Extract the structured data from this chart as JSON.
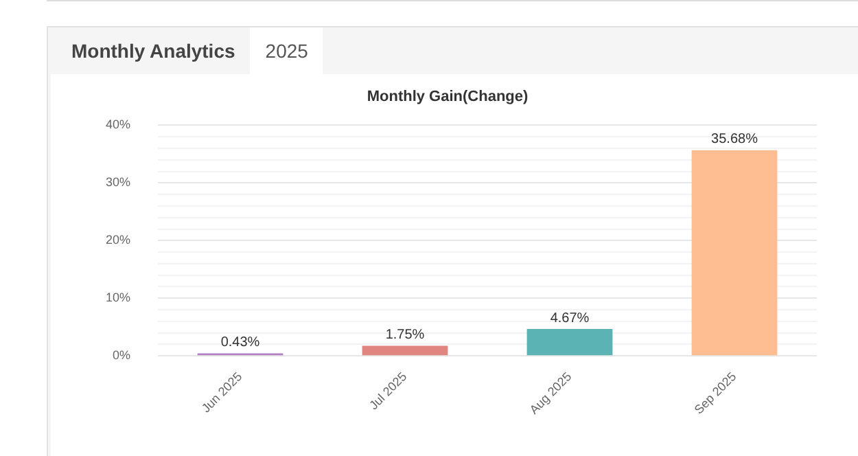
{
  "chart_data": {
    "type": "bar",
    "title": "Monthly Gain(Change)",
    "annotations": [
      "Monthly Analytics",
      "2025"
    ],
    "categories": [
      "Jun 2025",
      "Jul 2025",
      "Aug 2025",
      "Sep 2025"
    ],
    "values": [
      0.43,
      1.75,
      4.67,
      35.68
    ],
    "colors": [
      "#b57fc4",
      "#e08580",
      "#5bb3b3",
      "#ffbd91"
    ],
    "value_labels": [
      "0.43%",
      "1.75%",
      "4.67%",
      "35.68%"
    ],
    "ylim": [
      0,
      40
    ],
    "yticks": [
      {
        "value": 0,
        "label": "0%"
      },
      {
        "value": 2,
        "label": null
      },
      {
        "value": 4,
        "label": null
      },
      {
        "value": 6,
        "label": null
      },
      {
        "value": 8,
        "label": null
      },
      {
        "value": 10,
        "label": "10%"
      },
      {
        "value": 12,
        "label": null
      },
      {
        "value": 14,
        "label": null
      },
      {
        "value": 16,
        "label": null
      },
      {
        "value": 18,
        "label": null
      },
      {
        "value": 20,
        "label": "20%"
      },
      {
        "value": 22,
        "label": null
      },
      {
        "value": 24,
        "label": null
      },
      {
        "value": 26,
        "label": null
      },
      {
        "value": 28,
        "label": null
      },
      {
        "value": 30,
        "label": "30%"
      },
      {
        "value": 32,
        "label": null
      },
      {
        "value": 34,
        "label": null
      },
      {
        "value": 36,
        "label": null
      },
      {
        "value": 38,
        "label": null
      },
      {
        "value": 40,
        "label": "40%"
      }
    ],
    "grid": "y",
    "legend": false
  }
}
